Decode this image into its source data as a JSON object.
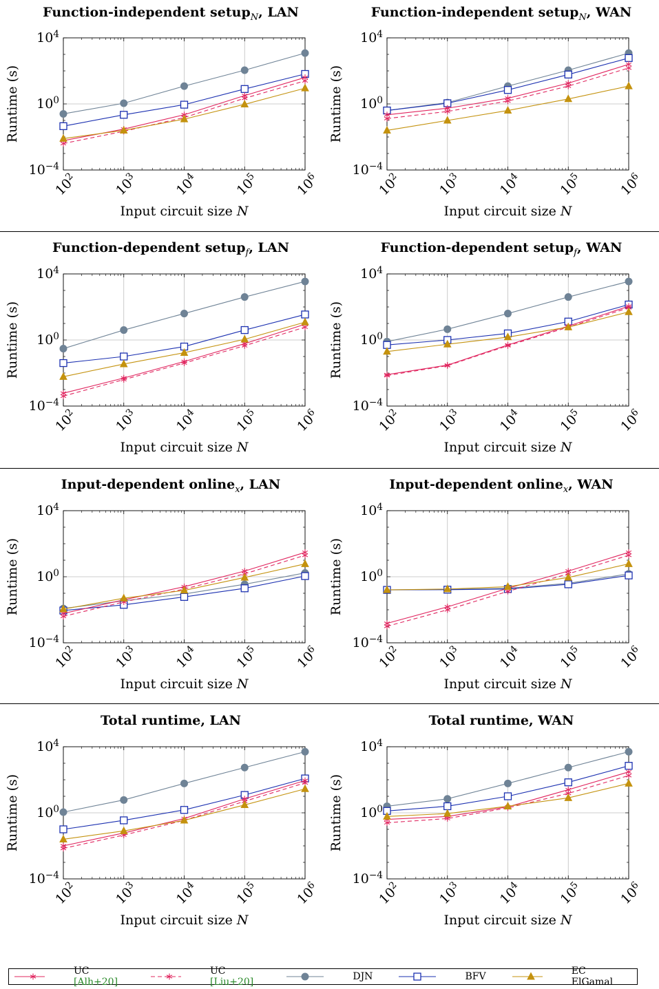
{
  "colors": {
    "uc_alh": "#e0245e",
    "uc_liu": "#e0245e",
    "djn": "#6f8396",
    "bfv": "#1a2fb0",
    "ec": "#c4920e",
    "grid": "#bdbdbd"
  },
  "legend": [
    {
      "key": "uc_alh",
      "text": "UC ",
      "cite": "[Alh+20]",
      "dash": false,
      "marker": "star"
    },
    {
      "key": "uc_liu",
      "text": "UC ",
      "cite": "[Liu+20]",
      "dash": true,
      "marker": "star"
    },
    {
      "key": "djn",
      "text": "DJN",
      "cite": "",
      "dash": false,
      "marker": "circle"
    },
    {
      "key": "bfv",
      "text": "BFV",
      "cite": "",
      "dash": false,
      "marker": "square"
    },
    {
      "key": "ec",
      "text": "EC ElGamal",
      "cite": "",
      "dash": false,
      "marker": "triangle"
    }
  ],
  "chart_data": [
    {
      "type": "line",
      "title": "Function-independent setup",
      "title_sub": "N",
      "title_suffix": ", LAN",
      "xlabel": "Input circuit size ",
      "xlabel_var": "N",
      "ylabel": "Runtime (s)",
      "x": [
        2,
        3,
        4,
        5,
        6
      ],
      "x_tick_labels": [
        "10^2",
        "10^3",
        "10^4",
        "10^5",
        "10^6"
      ],
      "y_scale": "log",
      "ylim_exp": [
        -4,
        4
      ],
      "y_tick_labels": [
        "10^-4",
        "10^0",
        "10^4"
      ],
      "grid": true,
      "series": [
        {
          "key": "djn",
          "values": [
            0.25,
            1.1,
            12,
            110,
            1200
          ]
        },
        {
          "key": "bfv",
          "values": [
            0.045,
            0.22,
            0.9,
            8,
            65
          ]
        },
        {
          "key": "uc_alh",
          "values": [
            0.006,
            0.03,
            0.22,
            3.2,
            40
          ]
        },
        {
          "key": "uc_liu",
          "values": [
            0.004,
            0.022,
            0.15,
            2.2,
            25
          ]
        },
        {
          "key": "ec",
          "values": [
            0.008,
            0.025,
            0.12,
            0.95,
            9
          ]
        }
      ]
    },
    {
      "type": "line",
      "title": "Function-independent setup",
      "title_sub": "N",
      "title_suffix": ", WAN",
      "xlabel": "Input circuit size ",
      "xlabel_var": "N",
      "ylabel": "Runtime (s)",
      "x": [
        2,
        3,
        4,
        5,
        6
      ],
      "x_tick_labels": [
        "10^2",
        "10^3",
        "10^4",
        "10^5",
        "10^6"
      ],
      "y_scale": "log",
      "ylim_exp": [
        -4,
        4
      ],
      "y_tick_labels": [
        "10^-4",
        "10^0",
        "10^4"
      ],
      "grid": true,
      "series": [
        {
          "key": "djn",
          "values": [
            0.4,
            1.2,
            12,
            110,
            1200
          ]
        },
        {
          "key": "bfv",
          "values": [
            0.4,
            1.1,
            7,
            60,
            600
          ]
        },
        {
          "key": "uc_alh",
          "values": [
            0.22,
            0.55,
            2.2,
            18,
            250
          ]
        },
        {
          "key": "uc_liu",
          "values": [
            0.13,
            0.35,
            1.5,
            12,
            150
          ]
        },
        {
          "key": "ec",
          "values": [
            0.025,
            0.1,
            0.4,
            2,
            12
          ]
        }
      ]
    },
    {
      "type": "line",
      "title": "Function-dependent setup",
      "title_sub": "f",
      "title_suffix": ", LAN",
      "xlabel": "Input circuit size ",
      "xlabel_var": "N",
      "ylabel": "Runtime (s)",
      "x": [
        2,
        3,
        4,
        5,
        6
      ],
      "x_tick_labels": [
        "10^2",
        "10^3",
        "10^4",
        "10^5",
        "10^6"
      ],
      "y_scale": "log",
      "ylim_exp": [
        -4,
        4
      ],
      "y_tick_labels": [
        "10^-4",
        "10^0",
        "10^4"
      ],
      "grid": true,
      "series": [
        {
          "key": "djn",
          "values": [
            0.3,
            4,
            40,
            400,
            3500
          ]
        },
        {
          "key": "bfv",
          "values": [
            0.04,
            0.1,
            0.4,
            4,
            35
          ]
        },
        {
          "key": "uc_alh",
          "values": [
            0.0006,
            0.005,
            0.05,
            0.6,
            9
          ]
        },
        {
          "key": "uc_liu",
          "values": [
            0.0004,
            0.004,
            0.04,
            0.45,
            6
          ]
        },
        {
          "key": "ec",
          "values": [
            0.006,
            0.035,
            0.17,
            1.1,
            12
          ]
        }
      ]
    },
    {
      "type": "line",
      "title": "Function-dependent setup",
      "title_sub": "f",
      "title_suffix": ", WAN",
      "xlabel": "Input circuit size ",
      "xlabel_var": "N",
      "ylabel": "Runtime (s)",
      "x": [
        2,
        3,
        4,
        5,
        6
      ],
      "x_tick_labels": [
        "10^2",
        "10^3",
        "10^4",
        "10^5",
        "10^6"
      ],
      "y_scale": "log",
      "ylim_exp": [
        -4,
        4
      ],
      "y_tick_labels": [
        "10^-4",
        "10^0",
        "10^4"
      ],
      "grid": true,
      "series": [
        {
          "key": "djn",
          "values": [
            0.8,
            4.5,
            40,
            400,
            3500
          ]
        },
        {
          "key": "bfv",
          "values": [
            0.5,
            1,
            2.5,
            13,
            140
          ]
        },
        {
          "key": "uc_alh",
          "values": [
            0.008,
            0.03,
            0.5,
            7,
            110
          ]
        },
        {
          "key": "uc_liu",
          "values": [
            0.007,
            0.028,
            0.45,
            6,
            90
          ]
        },
        {
          "key": "ec",
          "values": [
            0.2,
            0.55,
            1.5,
            6,
            50
          ]
        }
      ]
    },
    {
      "type": "line",
      "title": "Input-dependent online",
      "title_sub": "x",
      "title_suffix": ", LAN",
      "xlabel": "Input circuit size ",
      "xlabel_var": "N",
      "ylabel": "Runtime (s)",
      "x": [
        2,
        3,
        4,
        5,
        6
      ],
      "x_tick_labels": [
        "10^2",
        "10^3",
        "10^4",
        "10^5",
        "10^6"
      ],
      "y_scale": "log",
      "ylim_exp": [
        -4,
        4
      ],
      "y_tick_labels": [
        "10^-4",
        "10^0",
        "10^4"
      ],
      "grid": true,
      "series": [
        {
          "key": "djn",
          "values": [
            0.012,
            0.035,
            0.09,
            0.35,
            1.7
          ]
        },
        {
          "key": "bfv",
          "values": [
            0.009,
            0.02,
            0.06,
            0.2,
            1.1
          ]
        },
        {
          "key": "uc_alh",
          "values": [
            0.006,
            0.04,
            0.25,
            2.2,
            30
          ]
        },
        {
          "key": "uc_liu",
          "values": [
            0.004,
            0.03,
            0.18,
            1.5,
            20
          ]
        },
        {
          "key": "ec",
          "values": [
            0.011,
            0.05,
            0.15,
            0.9,
            6
          ]
        }
      ]
    },
    {
      "type": "line",
      "title": "Input-dependent online",
      "title_sub": "x",
      "title_suffix": ", WAN",
      "xlabel": "Input circuit size ",
      "xlabel_var": "N",
      "ylabel": "Runtime (s)",
      "x": [
        2,
        3,
        4,
        5,
        6
      ],
      "x_tick_labels": [
        "10^2",
        "10^3",
        "10^4",
        "10^5",
        "10^6"
      ],
      "y_scale": "log",
      "ylim_exp": [
        -4,
        4
      ],
      "y_tick_labels": [
        "10^-4",
        "10^0",
        "10^4"
      ],
      "grid": true,
      "series": [
        {
          "key": "djn",
          "values": [
            0.16,
            0.17,
            0.2,
            0.4,
            1.5
          ]
        },
        {
          "key": "bfv",
          "values": [
            0.16,
            0.165,
            0.18,
            0.35,
            1.2
          ]
        },
        {
          "key": "uc_alh",
          "values": [
            0.0015,
            0.015,
            0.2,
            2.2,
            30
          ]
        },
        {
          "key": "uc_liu",
          "values": [
            0.001,
            0.01,
            0.13,
            1.5,
            20
          ]
        },
        {
          "key": "ec",
          "values": [
            0.16,
            0.18,
            0.25,
            0.9,
            6
          ]
        }
      ]
    },
    {
      "type": "line",
      "title": "Total runtime, LAN",
      "title_sub": "",
      "title_suffix": "",
      "xlabel": "Input circuit size ",
      "xlabel_var": "N",
      "ylabel": "Runtime (s)",
      "x": [
        2,
        3,
        4,
        5,
        6
      ],
      "x_tick_labels": [
        "10^2",
        "10^3",
        "10^4",
        "10^5",
        "10^6"
      ],
      "y_scale": "log",
      "ylim_exp": [
        -4,
        4
      ],
      "y_tick_labels": [
        "10^-4",
        "10^0",
        "10^4"
      ],
      "grid": true,
      "series": [
        {
          "key": "djn",
          "values": [
            1.1,
            6,
            60,
            550,
            5000
          ]
        },
        {
          "key": "bfv",
          "values": [
            0.1,
            0.35,
            1.5,
            12,
            120
          ]
        },
        {
          "key": "uc_alh",
          "values": [
            0.01,
            0.06,
            0.45,
            7,
            90
          ]
        },
        {
          "key": "uc_liu",
          "values": [
            0.007,
            0.045,
            0.35,
            5,
            65
          ]
        },
        {
          "key": "ec",
          "values": [
            0.025,
            0.08,
            0.35,
            3,
            28
          ]
        }
      ]
    },
    {
      "type": "line",
      "title": "Total runtime, WAN",
      "title_sub": "",
      "title_suffix": "",
      "xlabel": "Input circuit size ",
      "xlabel_var": "N",
      "ylabel": "Runtime (s)",
      "x": [
        2,
        3,
        4,
        5,
        6
      ],
      "x_tick_labels": [
        "10^2",
        "10^3",
        "10^4",
        "10^5",
        "10^6"
      ],
      "y_scale": "log",
      "ylim_exp": [
        -4,
        4
      ],
      "y_tick_labels": [
        "10^-4",
        "10^0",
        "10^4"
      ],
      "grid": true,
      "series": [
        {
          "key": "djn",
          "values": [
            2.5,
            7,
            60,
            550,
            5000
          ]
        },
        {
          "key": "bfv",
          "values": [
            1.3,
            2.5,
            10,
            70,
            700
          ]
        },
        {
          "key": "uc_alh",
          "values": [
            0.4,
            0.6,
            2.3,
            25,
            300
          ]
        },
        {
          "key": "uc_liu",
          "values": [
            0.25,
            0.45,
            2.0,
            15,
            180
          ]
        },
        {
          "key": "ec",
          "values": [
            0.6,
            0.9,
            2.5,
            8,
            60
          ]
        }
      ]
    }
  ]
}
